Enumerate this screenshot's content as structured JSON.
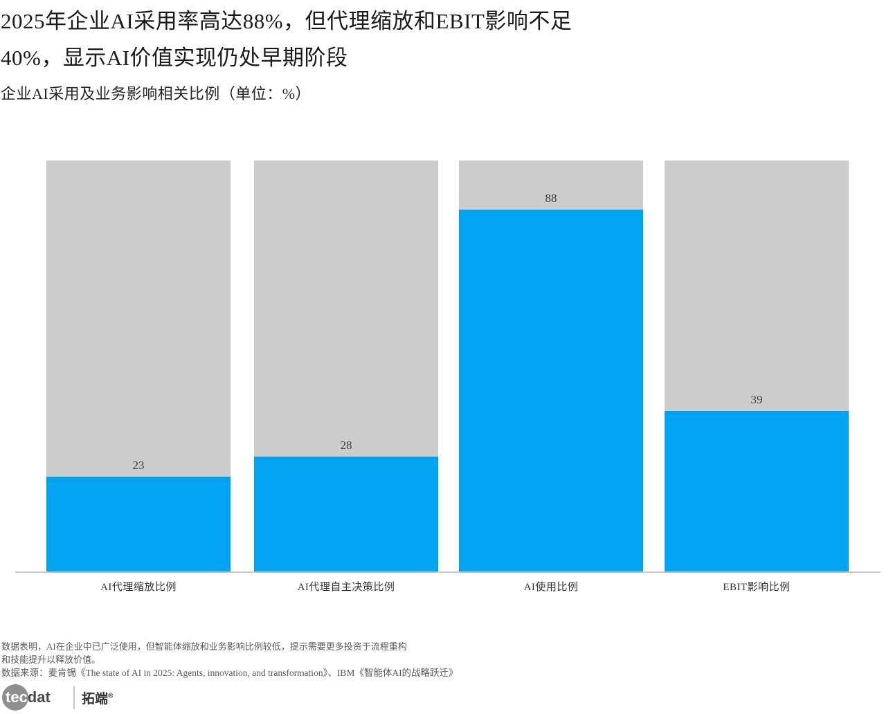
{
  "header": {
    "title_line1": "2025年企业AI采用率高达88%，但代理缩放和EBIT影响不足",
    "title_line2": "40%，显示AI价值实现仍处早期阶段",
    "subtitle": "企业AI采用及业务影响相关比例（单位：%）"
  },
  "chart_data": {
    "type": "bar",
    "title": "2025年企业AI采用率高达88%，但代理缩放和EBIT影响不足40%，显示AI价值实现仍处早期阶段",
    "subtitle": "企业AI采用及业务影响相关比例（单位：%）",
    "categories": [
      "AI代理缩放比例",
      "AI代理自主决策比例",
      "AI使用比例",
      "EBIT影响比例"
    ],
    "values": [
      23,
      28,
      88,
      39
    ],
    "unit": "%",
    "ylim": [
      0,
      100
    ],
    "grid": false,
    "legend": false,
    "value_labels_shown": true,
    "bar_color": "#00a3ef",
    "track_color": "#cccccc",
    "axis_line_color": "#c9c9c9"
  },
  "footer": {
    "note_lines": [
      "数据表明，AI在企业中已广泛使用，但智能体缩放和业务影响比例较低，提示需要更多投资于流程重构",
      "和技能提升以释放价值。"
    ],
    "source": "数据来源：麦肯锡《The state of AI in 2025: Agents, innovation, and transformation》、IBM《智能体AI的战略跃迁》"
  },
  "logo": {
    "circle_text": "tec",
    "wordmark_suffix": "dat",
    "brand_name": "拓端",
    "registered_mark": "®"
  }
}
